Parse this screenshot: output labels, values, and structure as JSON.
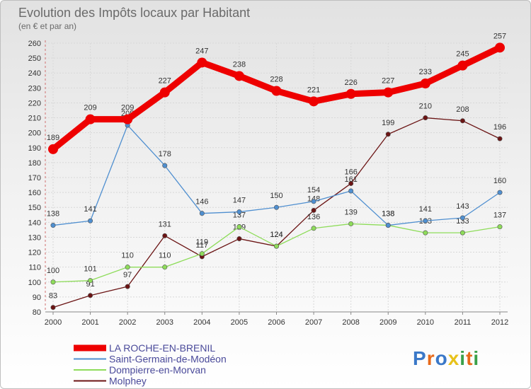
{
  "chart_data": {
    "type": "line",
    "title": "Evolution des Impôts locaux par Habitant",
    "subtitle": "(en € et par an)",
    "xlabel": "",
    "ylabel": "",
    "x": [
      "2000",
      "2001",
      "2002",
      "2003",
      "2004",
      "2005",
      "2006",
      "2007",
      "2008",
      "2009",
      "2010",
      "2011",
      "2012"
    ],
    "ylim": [
      80,
      260
    ],
    "yticks": [
      80,
      90,
      100,
      110,
      120,
      130,
      140,
      150,
      160,
      170,
      180,
      190,
      200,
      210,
      220,
      230,
      240,
      250,
      260
    ],
    "grid": true,
    "legend_position": "bottom-left",
    "series": [
      {
        "name": "LA ROCHE-EN-BRENIL",
        "color": "#ee0000",
        "values": [
          189,
          209,
          209,
          227,
          247,
          238,
          228,
          221,
          226,
          227,
          233,
          245,
          257
        ]
      },
      {
        "name": "Saint-Germain-de-Modéon",
        "color": "#4f8fd0",
        "values": [
          138,
          141,
          205,
          178,
          146,
          147,
          150,
          154,
          161,
          138,
          141,
          143,
          160
        ]
      },
      {
        "name": "Dompierre-en-Morvan",
        "color": "#8edc5a",
        "values": [
          100,
          101,
          110,
          110,
          119,
          137,
          124,
          136,
          139,
          138,
          133,
          133,
          137
        ]
      },
      {
        "name": "Molphey",
        "color": "#6b1414",
        "values": [
          83,
          91,
          97,
          131,
          117,
          129,
          124,
          148,
          166,
          199,
          210,
          208,
          196
        ]
      }
    ]
  },
  "brand": {
    "logo_text": "Proxiti",
    "letter_colors": [
      "#3a78c8",
      "#e86a1a",
      "#3a78c8",
      "#e8c21a",
      "#3aa04a",
      "#e86a1a",
      "#3aa04a"
    ]
  }
}
